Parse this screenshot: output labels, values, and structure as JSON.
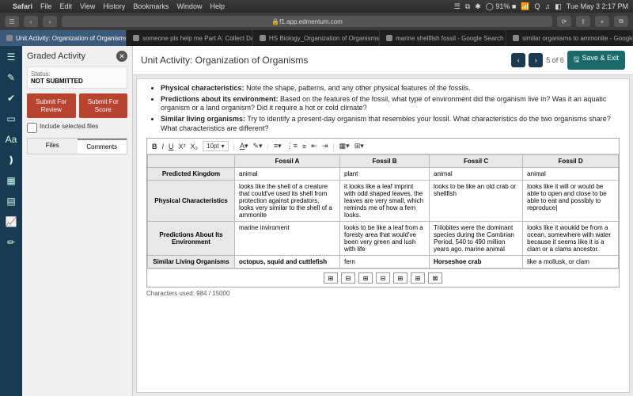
{
  "menubar": {
    "app": "Safari",
    "items": [
      "File",
      "Edit",
      "View",
      "History",
      "Bookmarks",
      "Window",
      "Help"
    ],
    "right": [
      "☰",
      "⧉",
      "✱",
      "◯ 91% ■",
      "📶",
      "Q",
      "♫",
      "◧",
      "Tue May 3  2:17 PM"
    ]
  },
  "url": "f1.app.edmentum.com",
  "browser_tabs": [
    {
      "label": "Unit Activity: Organization of Organisms",
      "active": true
    },
    {
      "label": "someone pls help me Part A: Collect Dat...",
      "active": false
    },
    {
      "label": "HS Biology_Organization of Organisms_V...",
      "active": false
    },
    {
      "label": "marine shellfish fossil - Google Search",
      "active": false
    },
    {
      "label": "similar organisms to ammonite - Google...",
      "active": false
    }
  ],
  "sidebar": {
    "title": "Graded Activity",
    "status_label": "Status:",
    "status_value": "NOT SUBMITTED",
    "btn1": "Submit For Review",
    "btn2": "Submit For Score",
    "include": "Include selected files",
    "tabs": [
      "Files",
      "Comments"
    ],
    "active_tab": 1
  },
  "activity": {
    "title": "Unit Activity: Organization of Organisms",
    "page": "5  of  6",
    "save": "Save & Exit"
  },
  "bullets": [
    {
      "b": "Physical characteristics:",
      "t": " Note the shape, patterns, and any other physical features of the fossils."
    },
    {
      "b": "Predictions about its environment:",
      "t": " Based on the features of the fossil, what type of environment did the organism live in? Was it an aquatic organism or a land organism? Did it require a hot or cold climate?"
    },
    {
      "b": "Similar living organisms:",
      "t": " Try to identify a present-day organism that resembles your fossil. What characteristics do the two organisms share? What characteristics are different?"
    }
  ],
  "editor": {
    "font_size": "10pt"
  },
  "table": {
    "cols": [
      "",
      "Fossil A",
      "Fossil B",
      "Fossil C",
      "Fossil D"
    ],
    "rows": [
      {
        "h": "Predicted Kingdom",
        "c": [
          "animal",
          "plant",
          "animal",
          "animal"
        ]
      },
      {
        "h": "Physical Characteristics",
        "c": [
          "looks like the shell of a creature that could've used its shell from protection against predators, looks very similar to the shell of a ammonite",
          "it looks like a leaf imprint with odd shaped leaves, the leaves are very small, which reminds me of how a fern looks.",
          "looks to be like an old crab or shellfish",
          "looks like it will or would be able to open and close to be able to eat and possibly to reproduce|"
        ]
      },
      {
        "h": "Predictions About Its Environment",
        "c": [
          "marine inviroment",
          "looks to be like a leaf from a foresty area that would've been very green and lush with life",
          "Trilobites were the dominant species during the Cambrian Period, 540 to 490 million years ago. marine animal",
          "looks like it woukld be from a ocean, somewhere with water because it seems like it is a clam or a clams ancestor."
        ]
      },
      {
        "h": "Similar Living Organisms",
        "c": [
          "octopus, squid and cuttlefish",
          "fern",
          "Horseshoe crab",
          "like a mollusk, or clam"
        ]
      }
    ]
  },
  "counter": "Characters used: 984 / 15000"
}
